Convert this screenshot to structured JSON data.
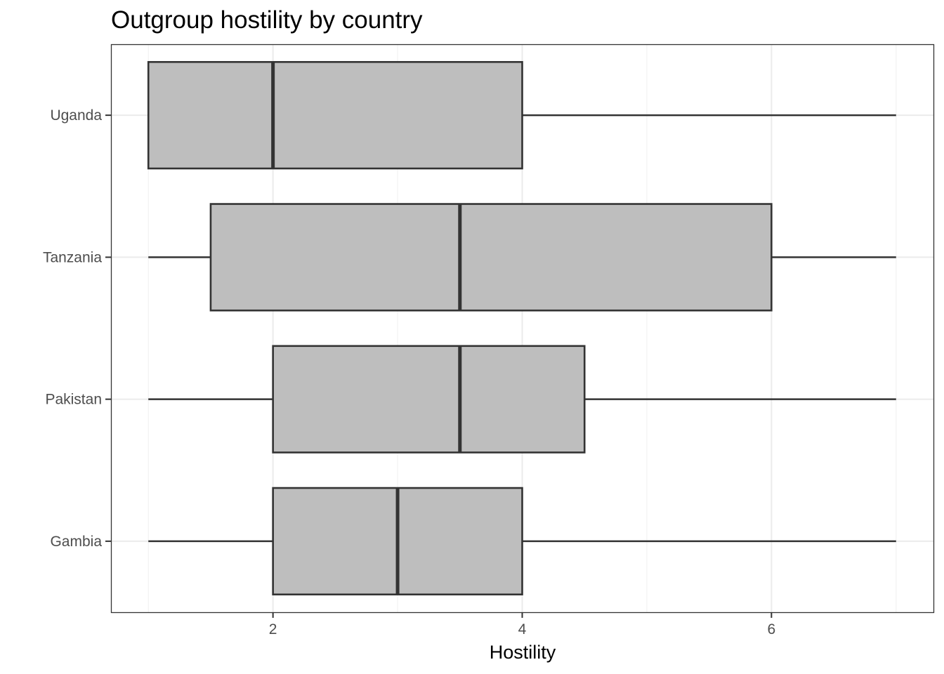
{
  "chart_data": {
    "type": "boxplot",
    "title": "Outgroup hostility by country",
    "xlabel": "Hostility",
    "ylabel": "",
    "xlim": [
      0.7,
      7.3
    ],
    "x_ticks": [
      2,
      4,
      6
    ],
    "grid": true,
    "categories": [
      "Uganda",
      "Tanzania",
      "Pakistan",
      "Gambia"
    ],
    "boxes": [
      {
        "name": "Uganda",
        "min": 1,
        "q1": 1,
        "median": 2,
        "q3": 4,
        "max": 7
      },
      {
        "name": "Tanzania",
        "min": 1,
        "q1": 1.5,
        "median": 3.5,
        "q3": 6,
        "max": 7
      },
      {
        "name": "Pakistan",
        "min": 1,
        "q1": 2,
        "median": 3.5,
        "q3": 4.5,
        "max": 7
      },
      {
        "name": "Gambia",
        "min": 1,
        "q1": 2,
        "median": 3,
        "q3": 4,
        "max": 7
      }
    ],
    "colors": {
      "box_fill": "#bebebe",
      "box_stroke": "#333333",
      "panel_border": "#333333",
      "grid_major": "#ebebeb",
      "grid_minor": "#f2f2f2"
    }
  }
}
